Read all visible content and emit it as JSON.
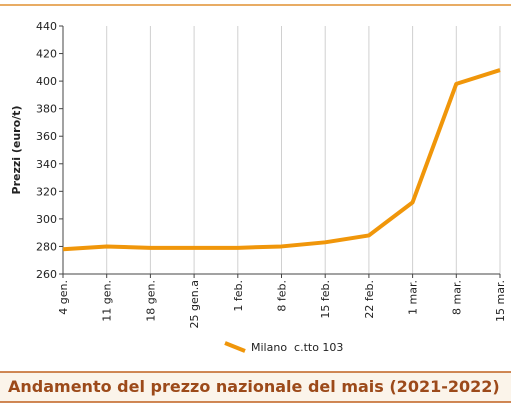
{
  "chart_data": {
    "type": "line",
    "title": "Andamento del prezzo nazionale del mais (2021-2022)",
    "y_label": "Prezzi (euro/t)",
    "categories": [
      "4 gen.",
      "11 gen.",
      "18 gen.",
      "25 gen.a",
      "1 feb.",
      "8 feb.",
      "15 feb.",
      "22 feb.",
      "1 mar.",
      "8 mar.",
      "15 mar."
    ],
    "series": [
      {
        "name": "Milano  c.tto 103",
        "color": "#f0960a",
        "values": [
          278,
          280,
          279,
          279,
          279,
          280,
          283,
          288,
          312,
          398,
          408
        ]
      }
    ],
    "ylim": [
      260,
      440
    ],
    "yticks": [
      260,
      280,
      300,
      320,
      340,
      360,
      380,
      400,
      420,
      440
    ],
    "grid": "x"
  }
}
